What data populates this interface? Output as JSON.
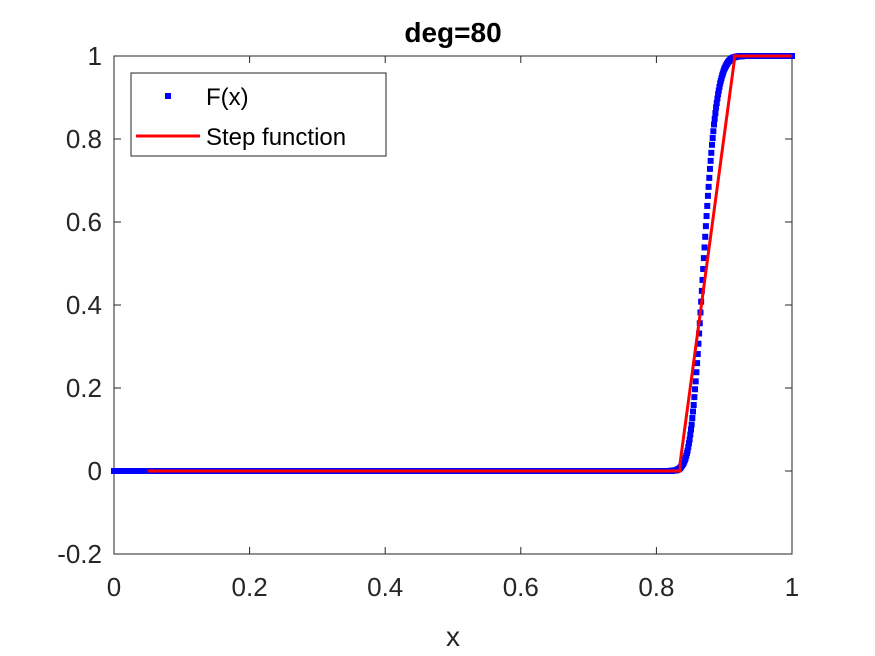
{
  "chart_data": {
    "type": "line",
    "title": "deg=80",
    "xlabel": "x",
    "ylabel": "",
    "xlim": [
      0,
      1
    ],
    "ylim": [
      -0.2,
      1
    ],
    "xticks": [
      0,
      0.2,
      0.4,
      0.6,
      0.8,
      1
    ],
    "yticks": [
      -0.2,
      0,
      0.2,
      0.4,
      0.6,
      0.8,
      1
    ],
    "xtick_labels": [
      "0",
      "0.2",
      "0.4",
      "0.6",
      "0.8",
      "1"
    ],
    "ytick_labels": [
      "-0.2",
      "0",
      "0.2",
      "0.4",
      "0.6",
      "0.8",
      "1"
    ],
    "grid": false,
    "legend_position": "top-left",
    "series": [
      {
        "name": "F(x)",
        "style": "markers",
        "color": "#0000ff",
        "x": [
          0,
          0.05,
          0.1,
          0.2,
          0.3,
          0.4,
          0.5,
          0.6,
          0.7,
          0.8,
          0.82,
          0.83,
          0.835,
          0.84,
          0.843,
          0.846,
          0.849,
          0.852,
          0.855,
          0.858,
          0.861,
          0.864,
          0.867,
          0.87,
          0.873,
          0.876,
          0.879,
          0.882,
          0.885,
          0.888,
          0.891,
          0.894,
          0.897,
          0.9,
          0.903,
          0.906,
          0.909,
          0.912,
          0.915,
          0.92,
          0.93,
          0.95,
          0.97,
          1
        ],
        "y": [
          0,
          0,
          0,
          0,
          0,
          0,
          0,
          0,
          0,
          0,
          0,
          0.002,
          0.007,
          0.019,
          0.031,
          0.049,
          0.076,
          0.112,
          0.159,
          0.216,
          0.282,
          0.356,
          0.434,
          0.513,
          0.59,
          0.663,
          0.728,
          0.786,
          0.835,
          0.876,
          0.908,
          0.934,
          0.953,
          0.968,
          0.978,
          0.986,
          0.991,
          0.995,
          0.997,
          0.999,
          1,
          1,
          1,
          1
        ]
      },
      {
        "name": "Step function",
        "style": "line",
        "color": "#ff0000",
        "x": [
          0.05,
          0.835,
          0.835,
          0.915,
          0.915,
          1
        ],
        "y": [
          0,
          0,
          0.02,
          0.99,
          1,
          1
        ]
      }
    ]
  }
}
